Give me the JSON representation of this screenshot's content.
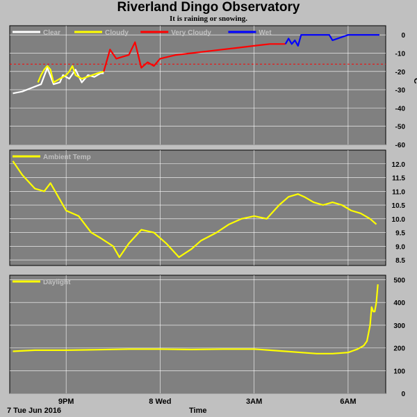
{
  "title": "Riverland Dingo Observatory",
  "subtitle": "It is raining or snowing.",
  "footer": {
    "date_label": "7 Tue Jun 2016",
    "axis_title": "Time"
  },
  "x_ticks": [
    {
      "label": "9PM",
      "t": 21
    },
    {
      "label": "8 Wed",
      "t": 24
    },
    {
      "label": "3AM",
      "t": 27
    },
    {
      "label": "6AM",
      "t": 30
    }
  ],
  "chart_data": [
    {
      "type": "line",
      "title": "",
      "ylabel": "°C",
      "xlim": [
        19.2,
        31.2
      ],
      "ylim": [
        -60,
        5
      ],
      "yticks": [
        0,
        -10,
        -20,
        -30,
        -40,
        -50,
        -60
      ],
      "threshold": -16,
      "threshold_color": "#ff0000",
      "legend_placement": "top-left",
      "grid": true,
      "series": [
        {
          "name": "Clear",
          "color": "#ffffff",
          "x": [
            19.3,
            19.6,
            19.9,
            20.2,
            20.4,
            20.6,
            20.8,
            20.9,
            21.1,
            21.3,
            21.5,
            21.7,
            21.9,
            22.1,
            22.2
          ],
          "y": [
            -32,
            -31,
            -29,
            -27,
            -18,
            -27,
            -26,
            -22,
            -24,
            -19,
            -26,
            -22,
            -23,
            -21,
            -21
          ]
        },
        {
          "name": "Cloudy",
          "color": "#ffff00",
          "x": [
            20.1,
            20.2,
            20.3,
            20.4,
            20.5,
            20.6,
            21.0,
            21.1,
            21.2,
            21.3,
            21.5,
            22.0,
            22.2
          ],
          "y": [
            -26,
            -22,
            -19,
            -17,
            -19,
            -26,
            -22,
            -20,
            -17,
            -22,
            -24,
            -21,
            -20
          ]
        },
        {
          "name": "Very Cloudy",
          "color": "#ff0000",
          "x": [
            22.2,
            22.4,
            22.6,
            22.8,
            23.0,
            23.2,
            23.4,
            23.6,
            23.8,
            24.0,
            24.5,
            25.0,
            25.5,
            26.0,
            26.5,
            27.0,
            27.5,
            28.0
          ],
          "y": [
            -20,
            -8,
            -13,
            -12,
            -11,
            -4,
            -18,
            -15,
            -17,
            -13,
            -11,
            -10,
            -9,
            -8,
            -7,
            -6,
            -5,
            -5
          ]
        },
        {
          "name": "Wet",
          "color": "#0000ff",
          "x": [
            28.0,
            28.1,
            28.2,
            28.3,
            28.4,
            28.5,
            29.0,
            29.4,
            29.5,
            30.0,
            30.5,
            31.0
          ],
          "y": [
            -5,
            -2,
            -5,
            -3,
            -6,
            0,
            0,
            0,
            -3,
            0,
            0,
            0
          ]
        }
      ]
    },
    {
      "type": "line",
      "title": "",
      "ylabel": "",
      "xlim": [
        19.2,
        31.2
      ],
      "ylim": [
        8.3,
        12.5
      ],
      "yticks": [
        8.5,
        9.0,
        9.5,
        10.0,
        10.5,
        11.0,
        11.5,
        12.0
      ],
      "legend_placement": "top-left",
      "grid": true,
      "series": [
        {
          "name": "Ambient Temp",
          "color": "#ffff00",
          "x": [
            19.3,
            19.6,
            20.0,
            20.3,
            20.5,
            20.8,
            21.0,
            21.4,
            21.8,
            22.1,
            22.5,
            22.7,
            23.0,
            23.4,
            23.8,
            24.2,
            24.6,
            25.0,
            25.3,
            25.8,
            26.2,
            26.6,
            27.0,
            27.4,
            27.8,
            28.1,
            28.4,
            28.6,
            28.9,
            29.2,
            29.5,
            29.8,
            30.1,
            30.4,
            30.7,
            30.9
          ],
          "y": [
            12.1,
            11.6,
            11.1,
            11.0,
            11.3,
            10.7,
            10.3,
            10.1,
            9.5,
            9.3,
            9.0,
            8.6,
            9.1,
            9.6,
            9.5,
            9.1,
            8.6,
            8.9,
            9.2,
            9.5,
            9.8,
            10.0,
            10.1,
            10.0,
            10.5,
            10.8,
            10.9,
            10.8,
            10.6,
            10.5,
            10.6,
            10.5,
            10.3,
            10.2,
            10.0,
            9.8
          ]
        }
      ]
    },
    {
      "type": "line",
      "title": "",
      "ylabel": "",
      "xlim": [
        19.2,
        31.2
      ],
      "ylim": [
        0,
        520
      ],
      "yticks": [
        0,
        100,
        200,
        300,
        400,
        500
      ],
      "legend_placement": "top-left",
      "grid": true,
      "series": [
        {
          "name": "Daylight",
          "color": "#ffff00",
          "x": [
            19.3,
            20.0,
            21.0,
            22.0,
            23.0,
            24.0,
            25.0,
            26.0,
            27.0,
            27.5,
            28.0,
            28.5,
            29.0,
            29.5,
            30.0,
            30.3,
            30.5,
            30.6,
            30.7,
            30.75,
            30.8,
            30.85,
            30.9,
            30.95
          ],
          "y": [
            185,
            190,
            190,
            192,
            195,
            195,
            193,
            195,
            195,
            190,
            185,
            180,
            175,
            175,
            180,
            195,
            210,
            230,
            300,
            380,
            360,
            360,
            400,
            480
          ]
        }
      ]
    }
  ]
}
